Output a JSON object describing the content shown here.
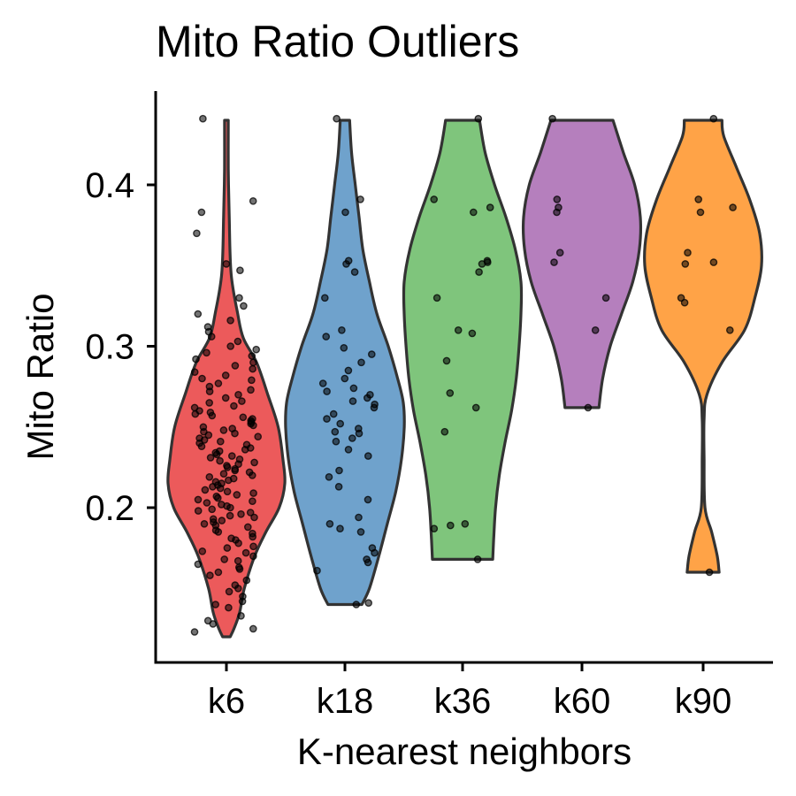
{
  "chart_data": {
    "type": "violin",
    "title": "Mito Ratio Outliers",
    "xlabel": "K-nearest neighbors",
    "ylabel": "Mito Ratio",
    "categories": [
      "k6",
      "k18",
      "k36",
      "k60",
      "k90"
    ],
    "colors": [
      "#E41A1C",
      "#377EB8",
      "#4DAF4A",
      "#984EA3",
      "#FF7F00"
    ],
    "ylim": [
      0.12,
      0.45
    ],
    "yticks": [
      "0.2",
      "0.3",
      "0.4"
    ],
    "ytick_values": [
      0.2,
      0.3,
      0.4
    ],
    "groups": [
      {
        "name": "k6",
        "y_range": [
          0.12,
          0.44
        ],
        "density": [
          [
            0.12,
            4
          ],
          [
            0.125,
            8
          ],
          [
            0.135,
            14
          ],
          [
            0.15,
            19
          ],
          [
            0.17,
            30
          ],
          [
            0.185,
            42
          ],
          [
            0.2,
            56
          ],
          [
            0.215,
            62
          ],
          [
            0.23,
            60
          ],
          [
            0.25,
            55
          ],
          [
            0.27,
            44
          ],
          [
            0.29,
            32
          ],
          [
            0.305,
            18
          ],
          [
            0.32,
            12
          ],
          [
            0.345,
            5
          ],
          [
            0.38,
            3
          ],
          [
            0.41,
            2
          ],
          [
            0.44,
            2
          ]
        ],
        "points": [
          0.123,
          0.125,
          0.128,
          0.13,
          0.133,
          0.138,
          0.14,
          0.142,
          0.145,
          0.148,
          0.15,
          0.152,
          0.155,
          0.158,
          0.16,
          0.162,
          0.163,
          0.165,
          0.167,
          0.168,
          0.17,
          0.172,
          0.173,
          0.175,
          0.176,
          0.178,
          0.18,
          0.181,
          0.182,
          0.184,
          0.185,
          0.186,
          0.188,
          0.189,
          0.19,
          0.191,
          0.192,
          0.193,
          0.194,
          0.195,
          0.196,
          0.197,
          0.198,
          0.199,
          0.2,
          0.201,
          0.202,
          0.203,
          0.204,
          0.205,
          0.206,
          0.207,
          0.208,
          0.209,
          0.21,
          0.211,
          0.212,
          0.213,
          0.214,
          0.215,
          0.216,
          0.217,
          0.218,
          0.219,
          0.22,
          0.221,
          0.222,
          0.223,
          0.224,
          0.225,
          0.226,
          0.227,
          0.228,
          0.229,
          0.23,
          0.231,
          0.232,
          0.233,
          0.234,
          0.235,
          0.236,
          0.237,
          0.238,
          0.239,
          0.24,
          0.241,
          0.242,
          0.243,
          0.244,
          0.245,
          0.246,
          0.247,
          0.248,
          0.249,
          0.25,
          0.251,
          0.252,
          0.253,
          0.254,
          0.255,
          0.256,
          0.257,
          0.258,
          0.259,
          0.26,
          0.262,
          0.263,
          0.265,
          0.266,
          0.268,
          0.27,
          0.272,
          0.273,
          0.275,
          0.277,
          0.279,
          0.28,
          0.282,
          0.284,
          0.286,
          0.288,
          0.29,
          0.292,
          0.294,
          0.296,
          0.298,
          0.3,
          0.303,
          0.306,
          0.309,
          0.312,
          0.316,
          0.32,
          0.325,
          0.33,
          0.347,
          0.351,
          0.37,
          0.383,
          0.39,
          0.441
        ],
        "counts_hint": "dense cluster"
      },
      {
        "name": "k18",
        "y_range": [
          0.14,
          0.44
        ],
        "density": [
          [
            0.14,
            18
          ],
          [
            0.15,
            26
          ],
          [
            0.17,
            36
          ],
          [
            0.19,
            45
          ],
          [
            0.21,
            54
          ],
          [
            0.23,
            60
          ],
          [
            0.25,
            63
          ],
          [
            0.265,
            62
          ],
          [
            0.28,
            56
          ],
          [
            0.3,
            46
          ],
          [
            0.32,
            34
          ],
          [
            0.34,
            26
          ],
          [
            0.36,
            19
          ],
          [
            0.38,
            15
          ],
          [
            0.4,
            11
          ],
          [
            0.42,
            7
          ],
          [
            0.44,
            5
          ]
        ],
        "points": [
          0.14,
          0.141,
          0.161,
          0.166,
          0.168,
          0.172,
          0.175,
          0.185,
          0.187,
          0.19,
          0.194,
          0.205,
          0.213,
          0.219,
          0.223,
          0.232,
          0.236,
          0.241,
          0.243,
          0.246,
          0.247,
          0.249,
          0.252,
          0.255,
          0.258,
          0.262,
          0.264,
          0.266,
          0.268,
          0.27,
          0.272,
          0.274,
          0.277,
          0.28,
          0.285,
          0.29,
          0.295,
          0.299,
          0.306,
          0.31,
          0.33,
          0.346,
          0.351,
          0.353,
          0.383,
          0.391,
          0.441
        ]
      },
      {
        "name": "k36",
        "y_range": [
          0.168,
          0.44
        ],
        "density": [
          [
            0.168,
            32
          ],
          [
            0.18,
            33
          ],
          [
            0.2,
            35
          ],
          [
            0.22,
            39
          ],
          [
            0.24,
            45
          ],
          [
            0.26,
            52
          ],
          [
            0.28,
            57
          ],
          [
            0.3,
            60
          ],
          [
            0.32,
            62
          ],
          [
            0.34,
            62
          ],
          [
            0.36,
            56
          ],
          [
            0.38,
            46
          ],
          [
            0.4,
            34
          ],
          [
            0.42,
            24
          ],
          [
            0.44,
            18
          ]
        ],
        "points": [
          0.168,
          0.187,
          0.189,
          0.19,
          0.247,
          0.262,
          0.271,
          0.291,
          0.308,
          0.31,
          0.33,
          0.346,
          0.351,
          0.352,
          0.353,
          0.383,
          0.386,
          0.391,
          0.441
        ]
      },
      {
        "name": "k60",
        "y_range": [
          0.262,
          0.44
        ],
        "density": [
          [
            0.262,
            18
          ],
          [
            0.28,
            22
          ],
          [
            0.3,
            30
          ],
          [
            0.32,
            42
          ],
          [
            0.34,
            54
          ],
          [
            0.36,
            61
          ],
          [
            0.38,
            62
          ],
          [
            0.4,
            56
          ],
          [
            0.42,
            44
          ],
          [
            0.44,
            33
          ]
        ],
        "points": [
          0.262,
          0.31,
          0.33,
          0.352,
          0.358,
          0.383,
          0.386,
          0.391,
          0.441
        ]
      },
      {
        "name": "k90",
        "y_range": [
          0.16,
          0.44
        ],
        "density": [
          [
            0.16,
            17
          ],
          [
            0.17,
            15
          ],
          [
            0.185,
            9
          ],
          [
            0.2,
            2
          ],
          [
            0.23,
            1
          ],
          [
            0.255,
            1
          ],
          [
            0.27,
            4
          ],
          [
            0.29,
            20
          ],
          [
            0.31,
            44
          ],
          [
            0.33,
            55
          ],
          [
            0.35,
            62
          ],
          [
            0.37,
            60
          ],
          [
            0.39,
            50
          ],
          [
            0.41,
            36
          ],
          [
            0.43,
            22
          ],
          [
            0.44,
            20
          ]
        ],
        "points": [
          0.16,
          0.31,
          0.327,
          0.33,
          0.351,
          0.352,
          0.358,
          0.383,
          0.386,
          0.391,
          0.441
        ]
      }
    ],
    "grid": false,
    "legend": "none"
  }
}
